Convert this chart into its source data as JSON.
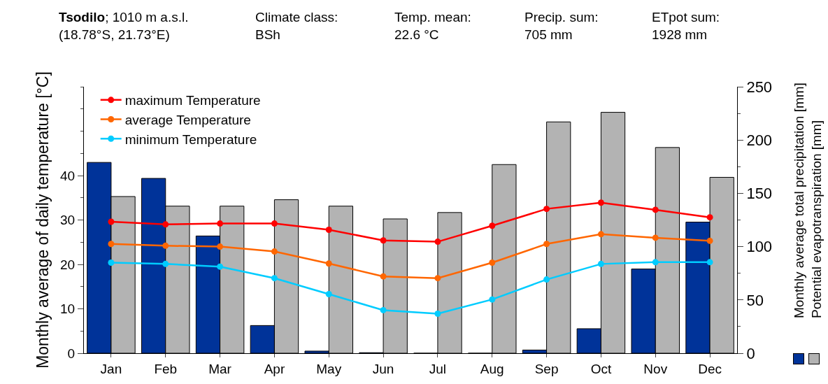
{
  "chart_data": {
    "type": "bar",
    "title": "Tsodilo; 1010 m a.s.l.\n(18.78°S, 21.73°E)",
    "annotations": [
      "Climate class:\nBSh",
      "Temp. mean:\n22.6 °C",
      "Precip. sum:\n705 mm",
      "ETpot sum:\n1928 mm"
    ],
    "categories": [
      "Jan",
      "Feb",
      "Mar",
      "Apr",
      "May",
      "Jun",
      "Jul",
      "Aug",
      "Sep",
      "Oct",
      "Nov",
      "Dec"
    ],
    "ylabel": "Monthly average of daily temperature [°C]",
    "y2label": "Monthly average total precipitation [mm]\nPotential evapotranspiration [mm]",
    "ylim": [
      0,
      60
    ],
    "yticks": [
      0,
      10,
      20,
      30,
      40
    ],
    "y2lim": [
      0,
      250
    ],
    "y2ticks": [
      0,
      50,
      100,
      150,
      200,
      250
    ],
    "legend": "top left",
    "marker": "circle",
    "series": [
      {
        "axis": "y2",
        "color": "#003399",
        "values": [
          179,
          164,
          110,
          26,
          2,
          0.5,
          0,
          0,
          3,
          23,
          79,
          123
        ]
      },
      {
        "axis": "y2",
        "color": "#b3b3b3",
        "values": [
          147,
          138,
          138,
          144,
          138,
          126,
          132,
          177,
          217,
          226,
          193,
          165
        ]
      },
      {
        "type": "line",
        "name": "maximum Temperature",
        "color": "#ff0000",
        "values": [
          29.6,
          29.0,
          29.2,
          29.2,
          27.8,
          25.4,
          25.1,
          28.7,
          32.5,
          33.9,
          32.3,
          30.6
        ]
      },
      {
        "type": "line",
        "name": "average Temperature",
        "color": "#ff6600",
        "values": [
          24.6,
          24.2,
          24.0,
          22.9,
          20.2,
          17.3,
          16.9,
          20.4,
          24.6,
          26.8,
          26.0,
          25.3
        ]
      },
      {
        "type": "line",
        "name": "minimum Temperature",
        "color": "#00ccff",
        "values": [
          20.4,
          20.1,
          19.5,
          16.9,
          13.3,
          9.7,
          8.9,
          12.1,
          16.6,
          20.1,
          20.5,
          20.5
        ]
      }
    ]
  }
}
